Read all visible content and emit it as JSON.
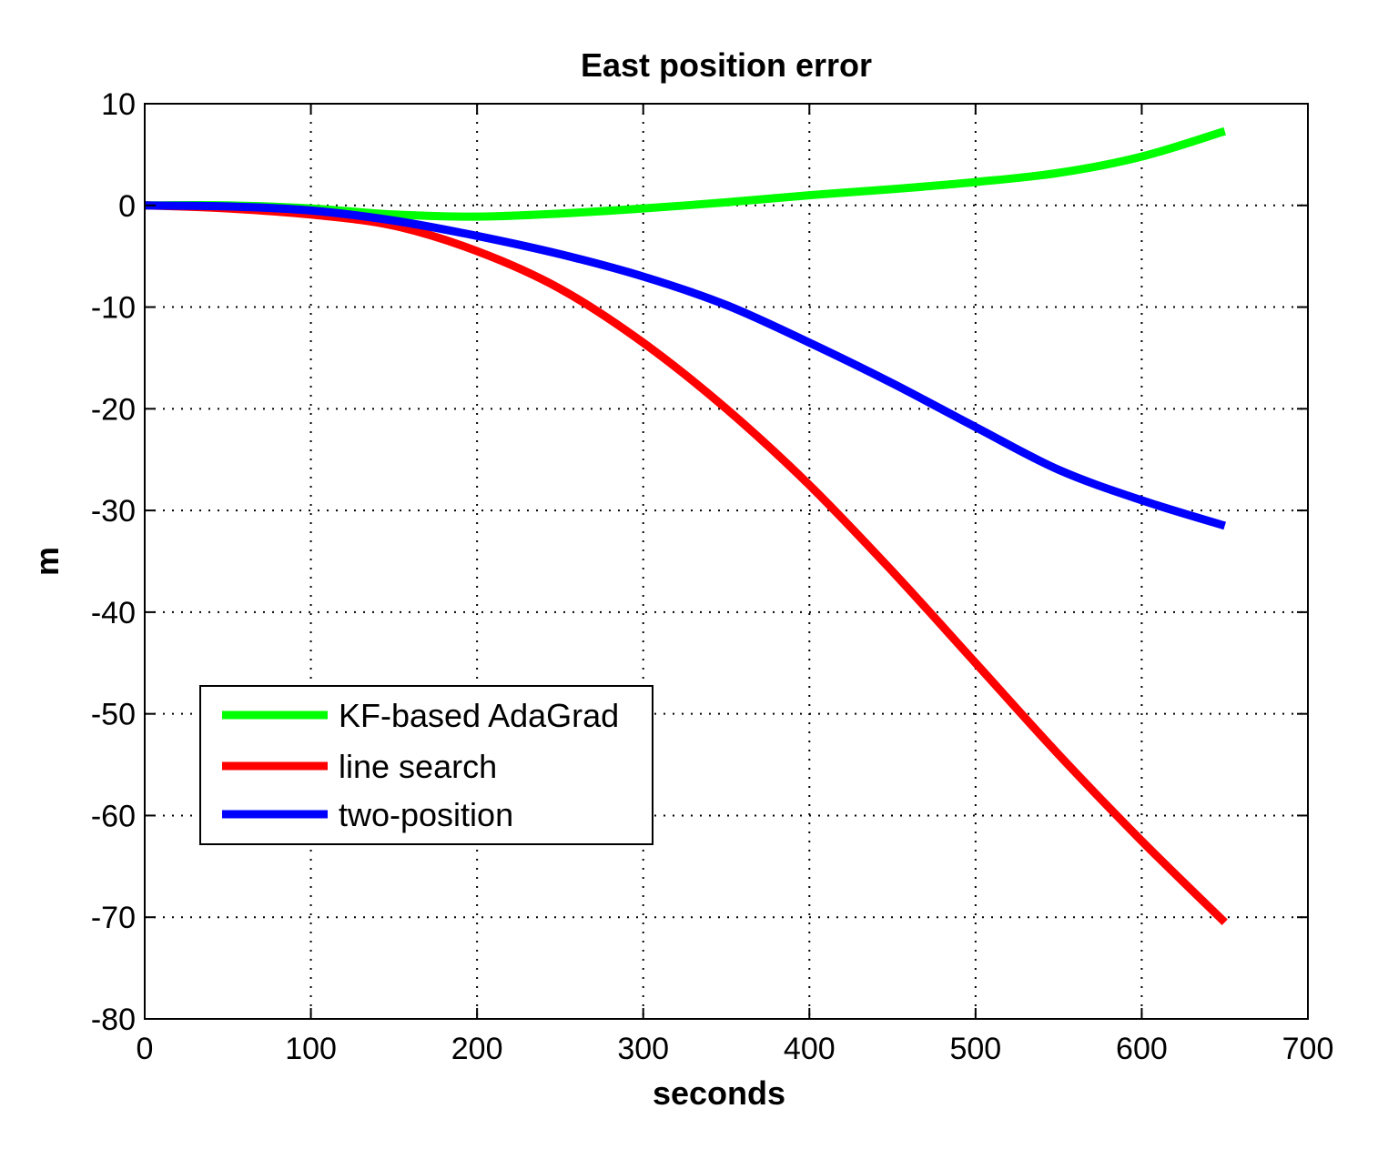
{
  "chart_data": {
    "type": "line",
    "title": "East position error",
    "xlabel": "seconds",
    "ylabel": "m",
    "xlim": [
      0,
      700
    ],
    "ylim": [
      -80,
      10
    ],
    "xticks": [
      0,
      100,
      200,
      300,
      400,
      500,
      600,
      700
    ],
    "yticks": [
      10,
      0,
      -10,
      -20,
      -30,
      -40,
      -50,
      -60,
      -70,
      -80
    ],
    "grid": true,
    "legend_position": "lower-left",
    "series": [
      {
        "name": "KF-based AdaGrad",
        "color": "#00ff00",
        "x": [
          0,
          50,
          100,
          150,
          200,
          250,
          300,
          350,
          400,
          450,
          500,
          550,
          600,
          650
        ],
        "y": [
          0,
          0,
          -0.3,
          -0.9,
          -1.1,
          -0.8,
          -0.3,
          0.3,
          1.0,
          1.6,
          2.3,
          3.2,
          4.8,
          7.3
        ]
      },
      {
        "name": "line search",
        "color": "#ff0000",
        "x": [
          0,
          50,
          100,
          150,
          200,
          250,
          300,
          350,
          400,
          450,
          500,
          550,
          600,
          650
        ],
        "y": [
          0,
          -0.3,
          -0.9,
          -2.0,
          -4.5,
          -8.2,
          -13.5,
          -20.0,
          -27.5,
          -36.0,
          -45.0,
          -54.0,
          -62.5,
          -70.5
        ]
      },
      {
        "name": "two-position",
        "color": "#0000ff",
        "x": [
          0,
          50,
          100,
          150,
          200,
          250,
          300,
          350,
          400,
          450,
          500,
          550,
          600,
          650
        ],
        "y": [
          0,
          -0.1,
          -0.5,
          -1.5,
          -3.0,
          -4.8,
          -7.0,
          -9.8,
          -13.5,
          -17.5,
          -21.8,
          -26.0,
          -29.0,
          -31.5
        ]
      }
    ]
  }
}
